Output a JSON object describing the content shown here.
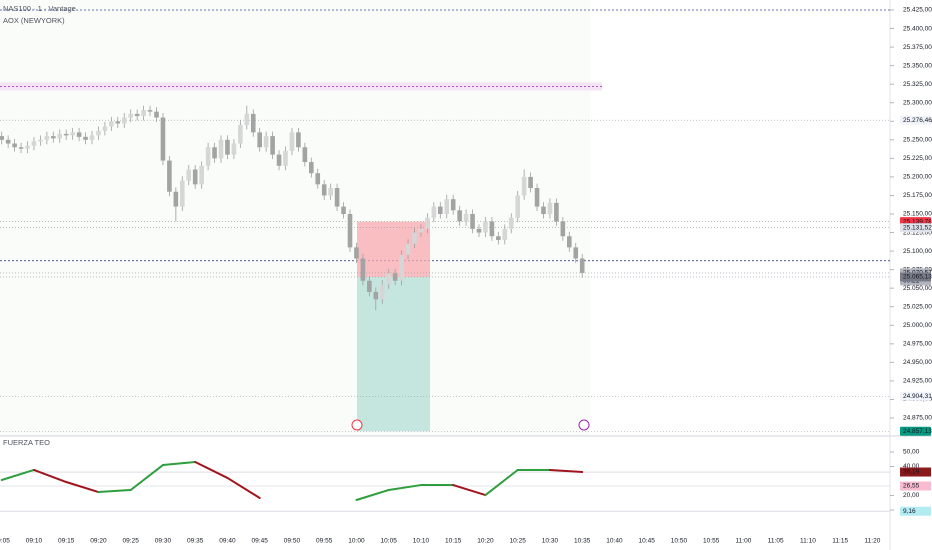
{
  "header": {
    "symbol": "NAS100 · 1 · Vantage",
    "session": "AOX (NEWYORK)"
  },
  "chart_data": [
    {
      "type": "candlestick",
      "categories": [
        "09:05",
        "09:06",
        "09:07",
        "09:08",
        "09:09",
        "09:10",
        "09:11",
        "09:12",
        "09:13",
        "09:14",
        "09:15",
        "09:16",
        "09:17",
        "09:18",
        "09:19",
        "09:20",
        "09:21",
        "09:22",
        "09:23",
        "09:24",
        "09:25",
        "09:26",
        "09:27",
        "09:28",
        "09:29",
        "09:30",
        "09:31",
        "09:32",
        "09:33",
        "09:34",
        "09:35",
        "09:36",
        "09:37",
        "09:38",
        "09:39",
        "09:40",
        "09:41",
        "09:42",
        "09:43",
        "09:44",
        "09:45",
        "09:46",
        "09:47",
        "09:48",
        "09:49",
        "09:50",
        "09:51",
        "09:52",
        "09:53",
        "09:54",
        "09:55",
        "09:56",
        "09:57",
        "09:58",
        "09:59",
        "10:00",
        "10:01",
        "10:02",
        "10:03",
        "10:04",
        "10:05",
        "10:06",
        "10:07",
        "10:08",
        "10:09",
        "10:10",
        "10:11",
        "10:12",
        "10:13",
        "10:14",
        "10:15",
        "10:16",
        "10:17",
        "10:18",
        "10:19",
        "10:20",
        "10:21",
        "10:22",
        "10:23",
        "10:24",
        "10:25",
        "10:26",
        "10:27",
        "10:28",
        "10:29",
        "10:30",
        "10:31",
        "10:32",
        "10:33",
        "10:34",
        "10:35"
      ],
      "open": [
        25255,
        25250,
        25245,
        25240,
        25238,
        25242,
        25248,
        25250,
        25255,
        25252,
        25258,
        25256,
        25260,
        25254,
        25250,
        25256,
        25262,
        25268,
        25275,
        25272,
        25280,
        25285,
        25282,
        25290,
        25288,
        25280,
        25222,
        25180,
        25160,
        25195,
        25210,
        25190,
        25215,
        25240,
        25225,
        25250,
        25230,
        25245,
        25270,
        25285,
        25260,
        25240,
        25255,
        25230,
        25215,
        25235,
        25260,
        25240,
        25220,
        25205,
        25190,
        25175,
        25185,
        25160,
        25150,
        25105,
        25090,
        25060,
        25045,
        25035,
        25055,
        25070,
        25060,
        25095,
        25110,
        25125,
        25130,
        25145,
        25160,
        25150,
        25170,
        25155,
        25140,
        25150,
        25130,
        25125,
        25140,
        25120,
        25115,
        25130,
        25145,
        25175,
        25200,
        25185,
        25160,
        25150,
        25165,
        25140,
        25120,
        25105,
        25090
      ],
      "high": [
        25261,
        25256,
        25251,
        25246,
        25248,
        25254,
        25256,
        25261,
        25261,
        25264,
        25264,
        25266,
        25266,
        25260,
        25262,
        25268,
        25274,
        25281,
        25281,
        25286,
        25291,
        25291,
        25296,
        25296,
        25294,
        25286,
        25228,
        25186,
        25201,
        25216,
        25216,
        25221,
        25246,
        25246,
        25256,
        25256,
        25251,
        25276,
        25296,
        25291,
        25266,
        25261,
        25261,
        25236,
        25241,
        25266,
        25266,
        25246,
        25226,
        25211,
        25196,
        25191,
        25191,
        25166,
        25156,
        25111,
        25096,
        25066,
        25051,
        25061,
        25076,
        25076,
        25101,
        25116,
        25131,
        25136,
        25151,
        25166,
        25166,
        25176,
        25176,
        25161,
        25156,
        25156,
        25136,
        25146,
        25146,
        25126,
        25136,
        25151,
        25181,
        25210,
        25206,
        25191,
        25166,
        25171,
        25171,
        25146,
        25126,
        25111,
        25096
      ],
      "low": [
        25244,
        25239,
        25234,
        25232,
        25232,
        25236,
        25242,
        25244,
        25246,
        25246,
        25250,
        25250,
        25248,
        25244,
        25244,
        25250,
        25256,
        25262,
        25266,
        25266,
        25274,
        25276,
        25276,
        25282,
        25274,
        25216,
        25174,
        25140,
        25154,
        25189,
        25184,
        25184,
        25209,
        25219,
        25219,
        25224,
        25224,
        25239,
        25264,
        25254,
        25234,
        25234,
        25224,
        25209,
        25209,
        25229,
        25234,
        25214,
        25199,
        25184,
        25169,
        25169,
        25154,
        25144,
        25099,
        25084,
        25054,
        25039,
        25020,
        25029,
        25049,
        25054,
        25054,
        25089,
        25104,
        25119,
        25124,
        25139,
        25144,
        25144,
        25149,
        25134,
        25134,
        25124,
        25119,
        25119,
        25114,
        25109,
        25109,
        25124,
        25139,
        25169,
        25179,
        25154,
        25144,
        25144,
        25134,
        25114,
        25099,
        25084,
        25064
      ],
      "close": [
        25250,
        25245,
        25240,
        25238,
        25242,
        25248,
        25250,
        25255,
        25252,
        25258,
        25256,
        25260,
        25254,
        25250,
        25256,
        25262,
        25268,
        25275,
        25272,
        25280,
        25285,
        25282,
        25290,
        25288,
        25280,
        25222,
        25180,
        25160,
        25195,
        25210,
        25190,
        25215,
        25240,
        25225,
        25250,
        25230,
        25245,
        25270,
        25285,
        25260,
        25240,
        25255,
        25230,
        25215,
        25235,
        25260,
        25240,
        25220,
        25205,
        25190,
        25175,
        25185,
        25160,
        25150,
        25105,
        25090,
        25060,
        25045,
        25035,
        25055,
        25070,
        25060,
        25095,
        25110,
        25125,
        25130,
        25145,
        25160,
        25150,
        25170,
        25155,
        25140,
        25150,
        25130,
        25125,
        25140,
        25120,
        25115,
        25130,
        25145,
        25175,
        25200,
        25185,
        25160,
        25150,
        25165,
        25140,
        25120,
        25105,
        25090,
        25070.57
      ],
      "up_color": "#d6d6d6",
      "down_color": "#a3a3a3",
      "ylim": [
        24875,
        25425
      ],
      "yticks": [
        {
          "value": 25425,
          "label": "25.425,00"
        },
        {
          "value": 25400,
          "label": "25.400,00"
        },
        {
          "value": 25375,
          "label": "25.375,00"
        },
        {
          "value": 25350,
          "label": "25.350,00"
        },
        {
          "value": 25325,
          "label": "25.325,00"
        },
        {
          "value": 25300,
          "label": "25.300,00"
        },
        {
          "value": 25275,
          "label": "25.275,00"
        },
        {
          "value": 25250,
          "label": "25.250,00"
        },
        {
          "value": 25225,
          "label": "25.225,00"
        },
        {
          "value": 25200,
          "label": "25.200,00"
        },
        {
          "value": 25175,
          "label": "25.175,00"
        },
        {
          "value": 25150,
          "label": "25.150,00"
        },
        {
          "value": 25125,
          "label": "25.125,00"
        },
        {
          "value": 25100,
          "label": "25.100,00"
        },
        {
          "value": 25075,
          "label": "25.075,00"
        },
        {
          "value": 25050,
          "label": "25.050,00"
        },
        {
          "value": 25025,
          "label": "25.025,00"
        },
        {
          "value": 25000,
          "label": "25.000,00"
        },
        {
          "value": 24975,
          "label": "24.975,00"
        },
        {
          "value": 24950,
          "label": "24.950,00"
        },
        {
          "value": 24925,
          "label": "24.925,00"
        },
        {
          "value": 24900,
          "label": "24.900,00"
        },
        {
          "value": 24875,
          "label": "24.875,00"
        }
      ],
      "levels": [
        {
          "value": 25425,
          "color": "#3949ab"
        },
        {
          "value": 25322,
          "color": "#9c27b0"
        },
        {
          "value": 25087,
          "color": "#1a237e"
        }
      ],
      "price_labels": [
        {
          "value": 25276.46,
          "label": "25.276,46",
          "bg": "#f0f3fa",
          "fg": "#131722"
        },
        {
          "value": 25139.78,
          "label": "25.139,78",
          "bg": "#f23645",
          "fg": "#ffffff"
        },
        {
          "value": 25131.52,
          "label": "25.131,52",
          "bg": "#e0e3eb",
          "fg": "#131722"
        },
        {
          "value": 25070.57,
          "label": "25.070,57",
          "sub": "00:21",
          "bg": "#b2b5be",
          "fg": "#131722"
        },
        {
          "value": 25065.13,
          "label": "25.065,13",
          "bg": "#787b86",
          "fg": "#ffffff"
        },
        {
          "value": 24904.31,
          "label": "24.904,31",
          "bg": "#f0f3fa",
          "fg": "#131722"
        },
        {
          "value": 24857.13,
          "label": "24.857,13",
          "bg": "#089981",
          "fg": "#ffffff"
        }
      ],
      "position": {
        "stop": 25139.78,
        "entry": 25065.13,
        "target": 24857.13
      }
    },
    {
      "type": "line",
      "title": "FUERZA TEO",
      "x": [
        "09:05",
        "09:10",
        "09:15",
        "09:20",
        "09:25",
        "09:30",
        "09:35",
        "09:40",
        "09:45",
        "09:50",
        "09:55",
        "10:00",
        "10:05",
        "10:10",
        "10:15",
        "10:20",
        "10:25",
        "10:30",
        "10:35"
      ],
      "series": [
        {
          "name": "FUERZA TEO",
          "rise_color": "#2e9e3e",
          "fall_color": "#a1141e",
          "values": [
            30.7,
            37.6,
            29.3,
            22.4,
            23.8,
            41.0,
            43.1,
            32.1,
            18.3,
            null,
            null,
            16.9,
            23.8,
            27.2,
            27.2,
            20.3,
            37.6,
            37.6,
            36.19
          ]
        }
      ],
      "ylim": [
        10,
        50
      ],
      "yticks": [
        {
          "value": 50,
          "label": "50,00"
        },
        {
          "value": 40,
          "label": "40,00"
        },
        {
          "value": 20,
          "label": "20,00"
        },
        {
          "value": 10,
          "label": "10,00"
        }
      ],
      "value_labels": [
        {
          "value": 36.19,
          "label": "36,19",
          "bg": "#8b1a1a"
        },
        {
          "value": 26.55,
          "label": "26,55",
          "bg": "#f8bbd0"
        },
        {
          "value": 9.16,
          "label": "9,16",
          "bg": "#b2ebf2"
        }
      ]
    }
  ],
  "time_axis": [
    "09:05",
    "09:10",
    "09:15",
    "09:20",
    "09:25",
    "09:30",
    "09:35",
    "09:40",
    "09:45",
    "09:50",
    "09:55",
    "10:00",
    "10:05",
    "10:10",
    "10:15",
    "10:20",
    "10:25",
    "10:30",
    "10:35",
    "10:40",
    "10:45",
    "10:50",
    "10:55",
    "11:00",
    "11:05",
    "11:10",
    "11:15",
    "11:20"
  ]
}
